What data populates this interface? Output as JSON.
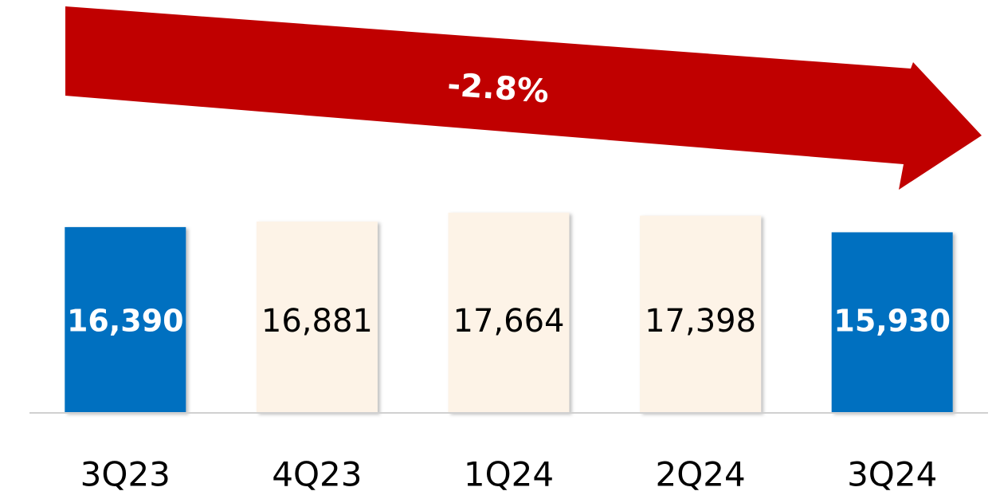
{
  "chart_data": {
    "type": "bar",
    "annotation": "-2.8%",
    "categories": [
      "3Q23",
      "4Q23",
      "1Q24",
      "2Q24",
      "3Q24"
    ],
    "values": [
      16390,
      16881,
      17664,
      17398,
      15930
    ],
    "value_labels": [
      "16,390",
      "16,881",
      "17,664",
      "17,398",
      "15,930"
    ],
    "colors": [
      "#0070c0",
      "#fdf3e7",
      "#fdf3e7",
      "#fdf3e7",
      "#0070c0"
    ],
    "label_colors": [
      "#ffffff",
      "#000000",
      "#000000",
      "#000000",
      "#ffffff"
    ],
    "arrow_color": "#c00000",
    "ylim": [
      0,
      18000
    ]
  }
}
